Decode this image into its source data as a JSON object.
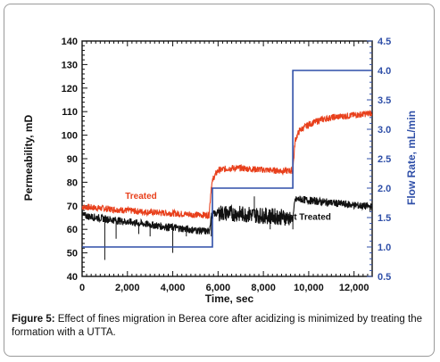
{
  "chart_data": {
    "type": "line",
    "xlabel": "Time, sec",
    "ylabel": "Permeability, mD",
    "y2label": "Flow Rate, mL/min",
    "xlim": [
      0,
      12800
    ],
    "ylim": [
      40,
      140
    ],
    "y2lim": [
      0.5,
      4.5
    ],
    "xticks": [
      0,
      2000,
      4000,
      6000,
      8000,
      10000,
      12000
    ],
    "xtick_labels": [
      "0",
      "2,000",
      "4,000",
      "6,000",
      "8,000",
      "10,000",
      "12,000"
    ],
    "yticks": [
      40,
      50,
      60,
      70,
      80,
      90,
      100,
      110,
      120,
      130,
      140
    ],
    "y2ticks": [
      0.5,
      1.0,
      1.5,
      2.0,
      2.5,
      3.0,
      3.5,
      4.0,
      4.5
    ],
    "y2tick_labels": [
      "0.5",
      "1.0",
      "1.5",
      "2.0",
      "2.5",
      "3.0",
      "3.5",
      "4.0",
      "4.5"
    ],
    "grid": false,
    "series": [
      {
        "name": "Treated",
        "color": "#e8401c",
        "axis": "left",
        "x": [
          0,
          500,
          1000,
          1500,
          2000,
          2500,
          3000,
          3500,
          4000,
          4500,
          5000,
          5600,
          5700,
          5800,
          6000,
          6500,
          7000,
          7500,
          8000,
          8500,
          9000,
          9300,
          9400,
          9600,
          10000,
          10500,
          11000,
          11500,
          12000,
          12500,
          12800
        ],
        "y": [
          69.5,
          69.2,
          68.8,
          68.4,
          68.0,
          67.6,
          67.3,
          67.0,
          66.8,
          66.5,
          66.2,
          66.0,
          78,
          82,
          85,
          86,
          86,
          85.6,
          85.3,
          85.0,
          84.8,
          85,
          98,
          102,
          104.5,
          106.5,
          107.5,
          108,
          108.5,
          109,
          109.5
        ]
      },
      {
        "name": "Not Treated",
        "color": "#111111",
        "axis": "left",
        "x": [
          0,
          500,
          1000,
          1500,
          2000,
          2500,
          3000,
          3500,
          4000,
          4500,
          5000,
          5600,
          5700,
          5800,
          6000,
          6500,
          7000,
          7500,
          8000,
          8500,
          9000,
          9300,
          9400,
          9600,
          10000,
          10500,
          11000,
          11500,
          12000,
          12500,
          12800
        ],
        "y": [
          66,
          65.2,
          64.5,
          63.8,
          63.2,
          62.6,
          62.0,
          61.3,
          60.8,
          60.2,
          59.6,
          59.0,
          65.5,
          66.5,
          67.0,
          66.8,
          66.5,
          66.2,
          65.8,
          65.5,
          65.0,
          64.5,
          72.5,
          72.8,
          72.3,
          71.8,
          71.3,
          70.8,
          70.3,
          69.8,
          69.5
        ]
      },
      {
        "name": "",
        "color": "#2f4fa8",
        "axis": "right",
        "x": [
          0,
          5750,
          5750,
          9300,
          9300,
          12800
        ],
        "y": [
          1.0,
          1.0,
          2.0,
          2.0,
          4.0,
          4.0
        ]
      }
    ],
    "annotations": [
      {
        "text": "Treated",
        "x": 2600,
        "y": 73,
        "color": "#e8401c"
      },
      {
        "text": "Not Treated",
        "x": 9900,
        "y": 64,
        "color": "#111111"
      }
    ],
    "caption_label": "Figure 5:",
    "caption_text": " Effect of fines migration in Berea core after acidizing is minimized by treating the formation with a UTTA."
  }
}
